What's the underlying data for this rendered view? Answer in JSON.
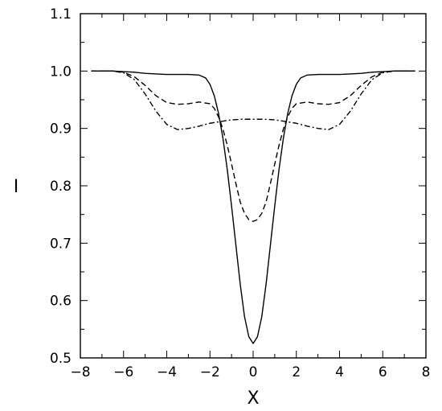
{
  "chart_data": {
    "type": "line",
    "title": "",
    "xlabel": "X",
    "ylabel": "I",
    "xlim": [
      -8,
      8
    ],
    "ylim": [
      0.5,
      1.1
    ],
    "xticks": [
      -8,
      -6,
      -4,
      -2,
      0,
      2,
      4,
      6,
      8
    ],
    "xtick_labels": [
      "−8",
      "−6",
      "−4",
      "−2",
      "0",
      "2",
      "4",
      "6",
      "8"
    ],
    "yticks": [
      0.5,
      0.6,
      0.7,
      0.8,
      0.9,
      1.0,
      1.1
    ],
    "ytick_labels": [
      "0.5",
      "0.6",
      "0.7",
      "0.8",
      "0.9",
      "1.0",
      "1.1"
    ],
    "grid": false,
    "legend": "none",
    "series": [
      {
        "style": "solid",
        "color": "#000000",
        "x": [
          -7.5,
          -6.5,
          -6.0,
          -5.5,
          -5.0,
          -4.5,
          -4.0,
          -3.5,
          -3.0,
          -2.5,
          -2.2,
          -2.0,
          -1.8,
          -1.6,
          -1.4,
          -1.2,
          -1.0,
          -0.8,
          -0.6,
          -0.4,
          -0.2,
          0.0,
          0.2,
          0.4,
          0.6,
          0.8,
          1.0,
          1.2,
          1.4,
          1.6,
          1.8,
          2.0,
          2.2,
          2.5,
          3.0,
          3.5,
          4.0,
          4.5,
          5.0,
          5.5,
          6.0,
          6.5,
          7.5
        ],
        "y": [
          1.0,
          1.0,
          0.999,
          0.998,
          0.996,
          0.995,
          0.994,
          0.994,
          0.994,
          0.993,
          0.988,
          0.977,
          0.957,
          0.926,
          0.883,
          0.829,
          0.765,
          0.697,
          0.629,
          0.572,
          0.537,
          0.525,
          0.537,
          0.572,
          0.629,
          0.697,
          0.765,
          0.829,
          0.883,
          0.926,
          0.957,
          0.977,
          0.988,
          0.993,
          0.994,
          0.994,
          0.994,
          0.995,
          0.996,
          0.998,
          0.999,
          1.0,
          1.0
        ]
      },
      {
        "style": "dashed",
        "color": "#000000",
        "x": [
          -7.5,
          -6.5,
          -6.0,
          -5.5,
          -5.0,
          -4.5,
          -4.0,
          -3.5,
          -3.0,
          -2.5,
          -2.0,
          -1.8,
          -1.6,
          -1.4,
          -1.2,
          -1.0,
          -0.8,
          -0.6,
          -0.4,
          -0.2,
          0.0,
          0.2,
          0.4,
          0.6,
          0.8,
          1.0,
          1.2,
          1.4,
          1.6,
          1.8,
          2.0,
          2.5,
          3.0,
          3.5,
          4.0,
          4.5,
          5.0,
          5.5,
          6.0,
          6.5,
          7.5
        ],
        "y": [
          1.0,
          1.0,
          0.998,
          0.99,
          0.975,
          0.957,
          0.945,
          0.942,
          0.943,
          0.946,
          0.943,
          0.935,
          0.92,
          0.899,
          0.871,
          0.838,
          0.804,
          0.772,
          0.752,
          0.741,
          0.738,
          0.741,
          0.752,
          0.772,
          0.804,
          0.838,
          0.871,
          0.899,
          0.92,
          0.935,
          0.943,
          0.946,
          0.943,
          0.942,
          0.945,
          0.957,
          0.975,
          0.99,
          0.998,
          1.0,
          1.0
        ]
      },
      {
        "style": "dashdot",
        "color": "#000000",
        "x": [
          -7.5,
          -6.5,
          -6.0,
          -5.5,
          -5.0,
          -4.5,
          -4.0,
          -3.5,
          -3.0,
          -2.5,
          -2.0,
          -1.5,
          -1.0,
          -0.5,
          0.0,
          0.5,
          1.0,
          1.5,
          2.0,
          2.5,
          3.0,
          3.5,
          4.0,
          4.5,
          5.0,
          5.5,
          6.0,
          6.5,
          7.5
        ],
        "y": [
          1.0,
          1.0,
          0.997,
          0.985,
          0.96,
          0.93,
          0.907,
          0.898,
          0.9,
          0.904,
          0.909,
          0.912,
          0.915,
          0.916,
          0.916,
          0.916,
          0.915,
          0.912,
          0.909,
          0.904,
          0.9,
          0.898,
          0.907,
          0.93,
          0.96,
          0.985,
          0.997,
          1.0,
          1.0
        ]
      }
    ]
  }
}
